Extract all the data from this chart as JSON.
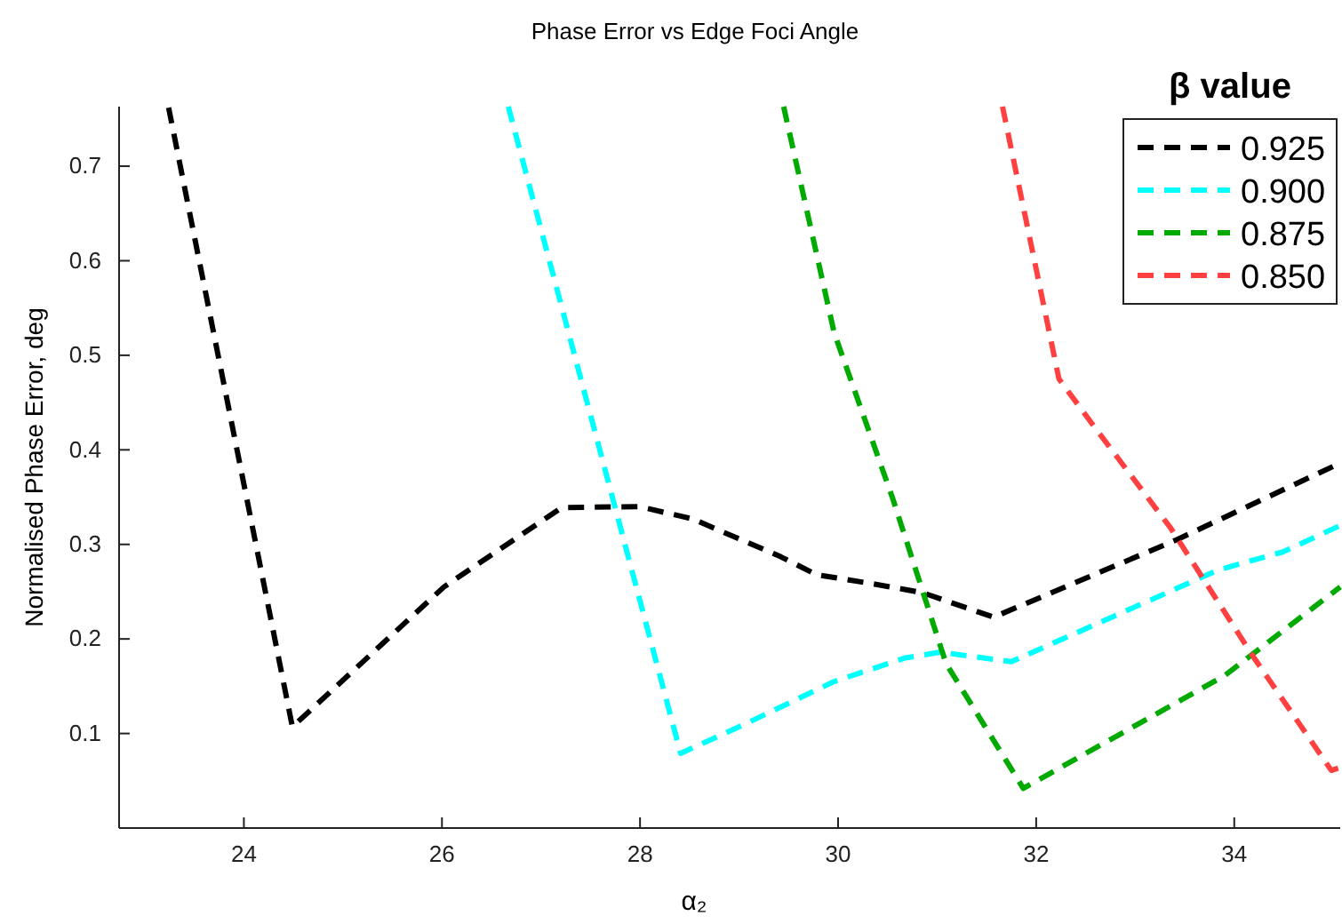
{
  "chart_data": {
    "type": "line",
    "title": "Phase Error vs Edge Foci Angle",
    "xlabel": "α₂",
    "ylabel": "Normalised Phase Error, deg",
    "legend_title": "β value",
    "legend": "top right",
    "line_style": "dashed",
    "marker": "none",
    "grid": false,
    "xlim": [
      22.74,
      35.07
    ],
    "xticks": [
      24,
      26,
      28,
      30,
      32,
      34
    ],
    "ylim": [
      0,
      0.763
    ],
    "yticks": [
      0.1,
      0.2,
      0.3,
      0.4,
      0.5,
      0.6,
      0.7
    ],
    "series": [
      {
        "name": "0.925",
        "color": "#000000",
        "x": [
          23.24,
          24.49,
          26.02,
          27.21,
          27.99,
          28.53,
          29.42,
          29.78,
          30.37,
          30.85,
          31.57,
          33.42,
          35.07
        ],
        "values": [
          0.762,
          0.107,
          0.255,
          0.339,
          0.34,
          0.327,
          0.287,
          0.268,
          0.258,
          0.249,
          0.223,
          0.305,
          0.386
        ]
      },
      {
        "name": "0.900",
        "color": "#00ffff",
        "x": [
          26.67,
          28.41,
          29.06,
          29.96,
          30.68,
          31.03,
          31.75,
          33.84,
          34.49,
          35.07
        ],
        "values": [
          0.763,
          0.079,
          0.11,
          0.155,
          0.18,
          0.186,
          0.176,
          0.273,
          0.292,
          0.32
        ]
      },
      {
        "name": "0.875",
        "color": "#00aa00",
        "x": [
          29.45,
          29.96,
          30.55,
          31.09,
          31.87,
          33.9,
          35.07
        ],
        "values": [
          0.763,
          0.524,
          0.349,
          0.174,
          0.042,
          0.161,
          0.255
        ]
      },
      {
        "name": "0.850",
        "color": "#ff4040",
        "x": [
          31.66,
          32.23,
          32.59,
          33.36,
          34.2,
          34.98,
          35.07
        ],
        "values": [
          0.763,
          0.475,
          0.424,
          0.317,
          0.18,
          0.061,
          0.064
        ]
      }
    ]
  }
}
